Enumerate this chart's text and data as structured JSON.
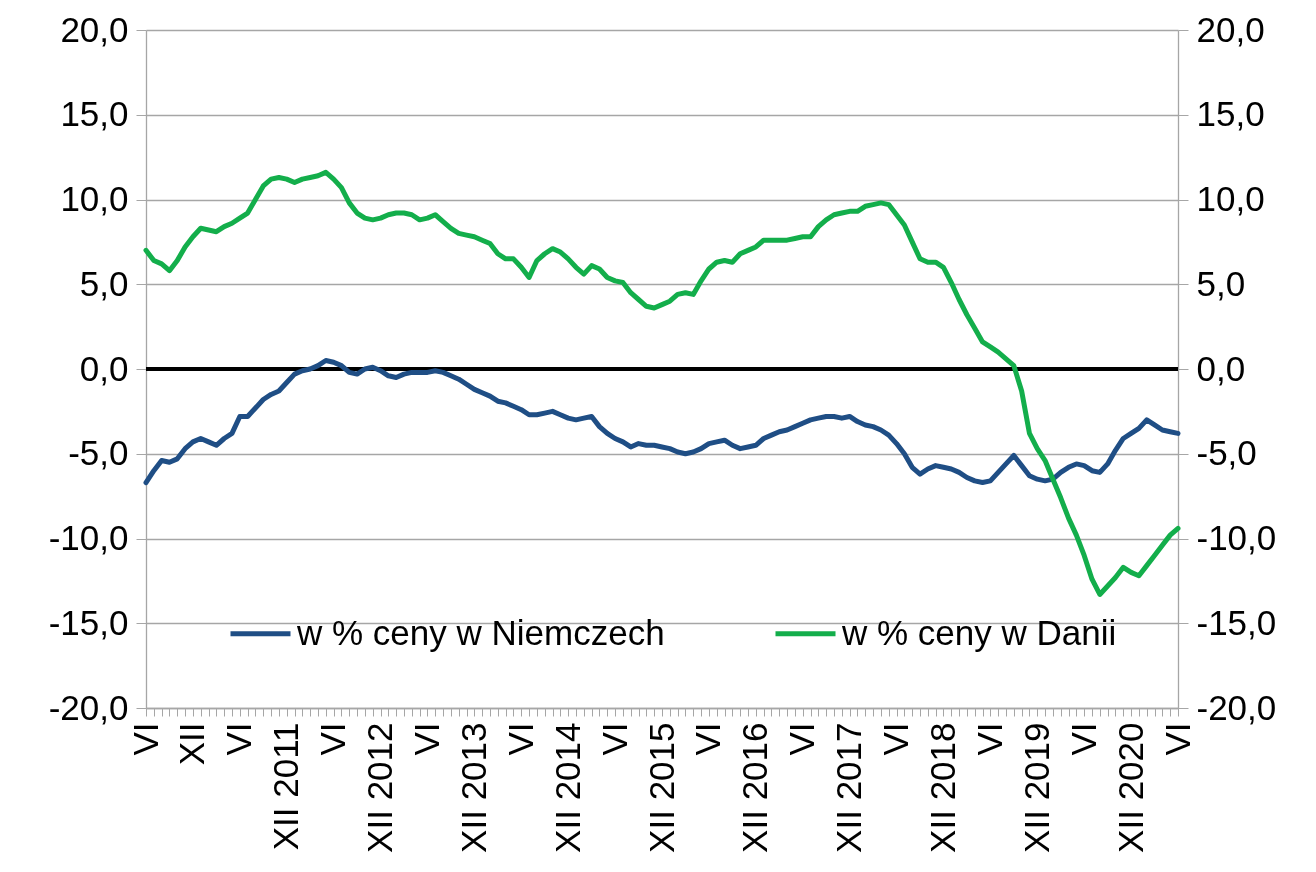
{
  "chart_data": {
    "type": "line",
    "categories": [
      "VI",
      null,
      null,
      null,
      null,
      null,
      "XII",
      null,
      null,
      null,
      null,
      null,
      "VI",
      null,
      null,
      null,
      null,
      null,
      "XII 2011",
      null,
      null,
      null,
      null,
      null,
      "VI",
      null,
      null,
      null,
      null,
      null,
      "XII 2012",
      null,
      null,
      null,
      null,
      null,
      "VI",
      null,
      null,
      null,
      null,
      null,
      "XII 2013",
      null,
      null,
      null,
      null,
      null,
      "VI",
      null,
      null,
      null,
      null,
      null,
      "XII 2014",
      null,
      null,
      null,
      null,
      null,
      "VI",
      null,
      null,
      null,
      null,
      null,
      "XII 2015",
      null,
      null,
      null,
      null,
      null,
      "VI",
      null,
      null,
      null,
      null,
      null,
      "XII 2016",
      null,
      null,
      null,
      null,
      null,
      "VI",
      null,
      null,
      null,
      null,
      null,
      "XII 2017",
      null,
      null,
      null,
      null,
      null,
      "VI",
      null,
      null,
      null,
      null,
      null,
      "XII 2018",
      null,
      null,
      null,
      null,
      null,
      "VI",
      null,
      null,
      null,
      null,
      null,
      "XII 2019",
      null,
      null,
      null,
      null,
      null,
      "VI",
      null,
      null,
      null,
      null,
      null,
      "XII 2020",
      null,
      null,
      null,
      null,
      null,
      "VI"
    ],
    "series": [
      {
        "name": "w % ceny w Niemczech",
        "color": "#1f4e85",
        "values": [
          -6.7,
          -6.0,
          -5.4,
          -5.5,
          -5.3,
          -4.7,
          -4.3,
          -4.1,
          -4.3,
          -4.5,
          -4.1,
          -3.8,
          -2.8,
          -2.8,
          -2.3,
          -1.8,
          -1.5,
          -1.3,
          -0.8,
          -0.3,
          -0.1,
          0.0,
          0.2,
          0.5,
          0.4,
          0.2,
          -0.2,
          -0.3,
          0.0,
          0.1,
          -0.1,
          -0.4,
          -0.5,
          -0.3,
          -0.2,
          -0.2,
          -0.2,
          -0.1,
          -0.2,
          -0.4,
          -0.6,
          -0.9,
          -1.2,
          -1.4,
          -1.6,
          -1.9,
          -2.0,
          -2.2,
          -2.4,
          -2.7,
          -2.7,
          -2.6,
          -2.5,
          -2.7,
          -2.9,
          -3.0,
          -2.9,
          -2.8,
          -3.4,
          -3.8,
          -4.1,
          -4.3,
          -4.6,
          -4.4,
          -4.5,
          -4.5,
          -4.6,
          -4.7,
          -4.9,
          -5.0,
          -4.9,
          -4.7,
          -4.4,
          -4.3,
          -4.2,
          -4.5,
          -4.7,
          -4.6,
          -4.5,
          -4.1,
          -3.9,
          -3.7,
          -3.6,
          -3.4,
          -3.2,
          -3.0,
          -2.9,
          -2.8,
          -2.8,
          -2.9,
          -2.8,
          -3.1,
          -3.3,
          -3.4,
          -3.6,
          -3.9,
          -4.4,
          -5.0,
          -5.8,
          -6.2,
          -5.9,
          -5.7,
          -5.8,
          -5.9,
          -6.1,
          -6.4,
          -6.6,
          -6.7,
          -6.6,
          -6.1,
          -5.6,
          -5.1,
          -5.7,
          -6.3,
          -6.5,
          -6.6,
          -6.5,
          -6.1,
          -5.8,
          -5.6,
          -5.7,
          -6.0,
          -6.1,
          -5.6,
          -4.8,
          -4.1,
          -3.8,
          -3.5,
          -3.0,
          -3.3,
          -3.6,
          -3.7,
          -3.8
        ]
      },
      {
        "name": "w % ceny w Danii",
        "color": "#13ae4b",
        "axis": "y2",
        "values": [
          7.0,
          6.4,
          6.2,
          5.8,
          6.4,
          7.2,
          7.8,
          8.3,
          8.2,
          8.1,
          8.4,
          8.6,
          8.9,
          9.2,
          10.0,
          10.8,
          11.2,
          11.3,
          11.2,
          11.0,
          11.2,
          11.3,
          11.4,
          11.6,
          11.2,
          10.7,
          9.8,
          9.2,
          8.9,
          8.8,
          8.9,
          9.1,
          9.2,
          9.2,
          9.1,
          8.8,
          8.9,
          9.1,
          8.7,
          8.3,
          8.0,
          7.9,
          7.8,
          7.6,
          7.4,
          6.8,
          6.5,
          6.5,
          6.0,
          5.4,
          6.4,
          6.8,
          7.1,
          6.9,
          6.5,
          6.0,
          5.6,
          6.1,
          5.9,
          5.4,
          5.2,
          5.1,
          4.5,
          4.1,
          3.7,
          3.6,
          3.8,
          4.0,
          4.4,
          4.5,
          4.4,
          5.2,
          5.9,
          6.3,
          6.4,
          6.3,
          6.8,
          7.0,
          7.2,
          7.6,
          7.6,
          7.6,
          7.6,
          7.7,
          7.8,
          7.8,
          8.4,
          8.8,
          9.1,
          9.2,
          9.3,
          9.3,
          9.6,
          9.7,
          9.8,
          9.7,
          9.1,
          8.5,
          7.5,
          6.5,
          6.3,
          6.3,
          6.0,
          5.1,
          4.1,
          3.2,
          2.4,
          1.6,
          1.3,
          1.0,
          0.6,
          0.2,
          -1.3,
          -3.8,
          -4.7,
          -5.4,
          -6.5,
          -7.6,
          -8.8,
          -9.8,
          -11.0,
          -12.4,
          -13.3,
          -12.8,
          -12.3,
          -11.7,
          -12.0,
          -12.2,
          -11.6,
          -11.0,
          -10.4,
          -9.8,
          -9.4
        ]
      }
    ],
    "ylim": [
      -20,
      20
    ],
    "yticks": [
      {
        "value": -20,
        "label": "-20,0"
      },
      {
        "value": -15,
        "label": "-15,0"
      },
      {
        "value": -10,
        "label": "-10,0"
      },
      {
        "value": -5,
        "label": "-5,0"
      },
      {
        "value": 0,
        "label": "0,0"
      },
      {
        "value": 5,
        "label": "5,0"
      },
      {
        "value": 10,
        "label": "10,0"
      },
      {
        "value": 15,
        "label": "15,0"
      },
      {
        "value": 20,
        "label": "20,0"
      }
    ],
    "y2lim": [
      -20,
      20
    ],
    "y2ticks": [
      {
        "value": -20,
        "label": "-20,0"
      },
      {
        "value": -15,
        "label": "-15,0"
      },
      {
        "value": -10,
        "label": "-10,0"
      },
      {
        "value": -5,
        "label": "-5,0"
      },
      {
        "value": 0,
        "label": "0,0"
      },
      {
        "value": 5,
        "label": "5,0"
      },
      {
        "value": 10,
        "label": "10,0"
      },
      {
        "value": 15,
        "label": "15,0"
      },
      {
        "value": 20,
        "label": "20,0"
      }
    ],
    "grid": "y",
    "legend": "bottom",
    "ref_lines": [
      {
        "axis": "y",
        "value": 0,
        "color": "#000000"
      }
    ]
  }
}
